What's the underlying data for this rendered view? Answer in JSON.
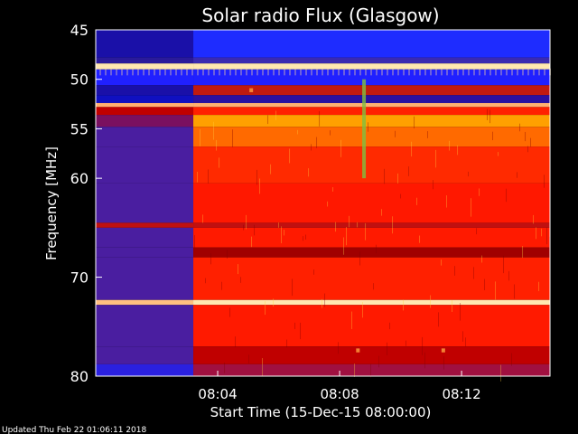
{
  "chart_data": {
    "type": "heatmap",
    "title": "Solar radio Flux (Glasgow)",
    "ylabel": "Frequency [MHz]",
    "xlabel": "Start Time (15-Dec-15 08:00:00)",
    "footer": "Updated Thu Feb 22 01:06:11 2018",
    "y_range": [
      45,
      80
    ],
    "y_ticks": [
      45,
      50,
      55,
      60,
      70,
      80
    ],
    "x_range_minutes": [
      0,
      14.9
    ],
    "x_ticks": [
      {
        "minute": 4,
        "label": "08:04"
      },
      {
        "minute": 8,
        "label": "08:08"
      },
      {
        "minute": 12,
        "label": "08:12"
      }
    ],
    "transition_minute": 3.2,
    "colors": {
      "deep_blue": "#1a10a8",
      "blue": "#2020ff",
      "purple": "#4a1ea0",
      "dark_red": "#a00000",
      "red": "#ff1a00",
      "orange": "#ff7a00",
      "yellow": "#ffd040",
      "pale": "#ffe8b0"
    },
    "bands": [
      {
        "f0": 45.0,
        "f1": 47.8,
        "before": "#1a10a8",
        "after": "#1e2cff"
      },
      {
        "f0": 47.8,
        "f1": 48.4,
        "before": "#2a1a9a",
        "after": "#3a2ab0"
      },
      {
        "f0": 48.4,
        "f1": 49.0,
        "before": "#ffe8b0",
        "after": "#ffe8b0"
      },
      {
        "f0": 49.0,
        "f1": 50.6,
        "before": "#2020ff",
        "after": "#2020ff"
      },
      {
        "f0": 50.6,
        "f1": 51.6,
        "before": "#1a10a8",
        "after": "#c01a10"
      },
      {
        "f0": 51.6,
        "f1": 52.4,
        "before": "#1010c0",
        "after": "#2a10a0"
      },
      {
        "f0": 52.4,
        "f1": 52.8,
        "before": "#ffb070",
        "after": "#ffb070"
      },
      {
        "f0": 52.8,
        "f1": 53.6,
        "before": "#c00000",
        "after": "#ff2000"
      },
      {
        "f0": 53.6,
        "f1": 54.8,
        "before": "#7a1060",
        "after": "#ffa000"
      },
      {
        "f0": 54.8,
        "f1": 56.8,
        "before": "#4a1ea0",
        "after": "#ff6a00"
      },
      {
        "f0": 56.8,
        "f1": 60.5,
        "before": "#4a1ea0",
        "after": "#ff2a00"
      },
      {
        "f0": 60.5,
        "f1": 64.5,
        "before": "#4a1ea0",
        "after": "#ff1800"
      },
      {
        "f0": 64.5,
        "f1": 65.0,
        "before": "#c01010",
        "after": "#c01010"
      },
      {
        "f0": 65.0,
        "f1": 67.0,
        "before": "#4a1ea0",
        "after": "#ff1a00"
      },
      {
        "f0": 67.0,
        "f1": 68.0,
        "before": "#4a1ea0",
        "after": "#a00000"
      },
      {
        "f0": 68.0,
        "f1": 72.3,
        "before": "#4a1ea0",
        "after": "#ff2000"
      },
      {
        "f0": 72.3,
        "f1": 72.8,
        "before": "#ffc080",
        "after": "#ffe8b0"
      },
      {
        "f0": 72.8,
        "f1": 77.0,
        "before": "#4a1ea0",
        "after": "#ff1a00"
      },
      {
        "f0": 77.0,
        "f1": 78.8,
        "before": "#4a1ea0",
        "after": "#c00000"
      },
      {
        "f0": 78.8,
        "f1": 80.0,
        "before": "#2a20e0",
        "after": "#a01040"
      }
    ],
    "spikes": [
      {
        "minute": 8.8,
        "f0": 50.0,
        "f1": 60.0,
        "color": "#80c040"
      },
      {
        "minute": 8.6,
        "f0": 77.2,
        "f1": 77.6,
        "color": "#ffa040"
      },
      {
        "minute": 11.4,
        "f0": 77.2,
        "f1": 77.6,
        "color": "#ffa040"
      },
      {
        "minute": 5.1,
        "f0": 50.9,
        "f1": 51.3,
        "color": "#ffa040"
      }
    ]
  }
}
